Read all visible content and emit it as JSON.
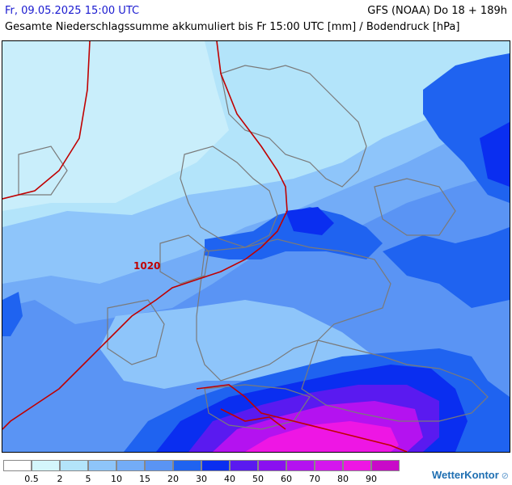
{
  "header": {
    "datetime": "Fr, 09.05.2025 15:00 UTC",
    "model_run": "GFS (NOAA) Do 18 + 189h",
    "title": "Gesamte Niederschlagssumme akkumuliert bis Fr 15:00 UTC [mm] / Bodendruck [hPa]"
  },
  "map": {
    "isobar_label": "1020",
    "isobar_color": "#c00000",
    "border_color": "#7a7a7a"
  },
  "legend": {
    "labels": [
      "0.5",
      "2",
      "5",
      "10",
      "15",
      "20",
      "30",
      "40",
      "50",
      "60",
      "70",
      "80",
      "90"
    ],
    "colors": [
      "#ffffff",
      "#d4f6fb",
      "#b3e4fa",
      "#8ec5fa",
      "#73acf7",
      "#5a94f4",
      "#1f63f0",
      "#0a2ef0",
      "#5a1af0",
      "#8a10f0",
      "#b412f0",
      "#d416ee",
      "#ee16e4",
      "#c80ac8"
    ]
  },
  "branding": {
    "logo": "WetterKontor"
  }
}
